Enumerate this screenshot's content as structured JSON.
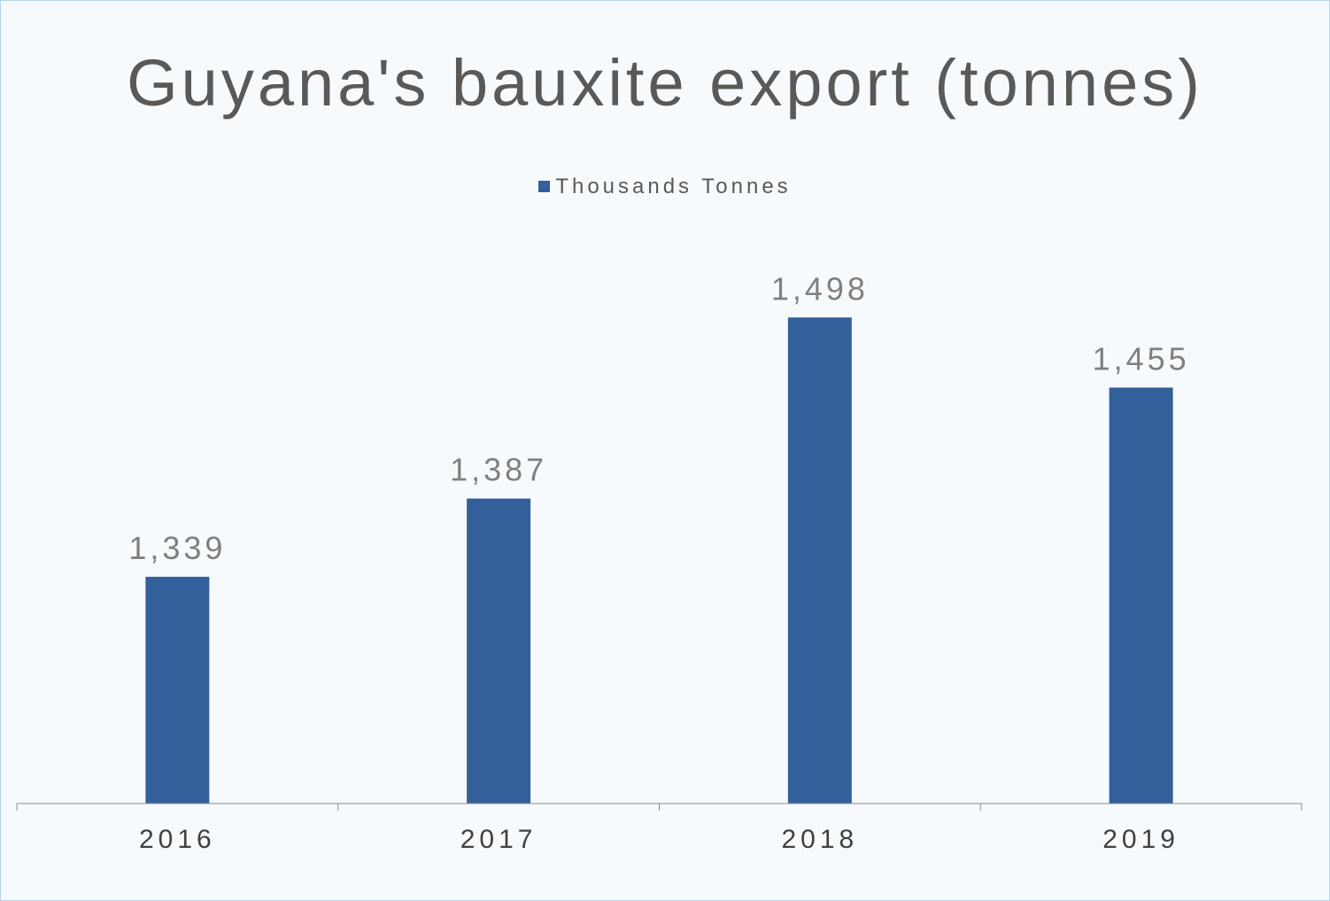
{
  "chart_data": {
    "type": "bar",
    "title": "Guyana's bauxite export (tonnes)",
    "categories": [
      "2016",
      "2017",
      "2018",
      "2019"
    ],
    "series": [
      {
        "name": "Thousands Tonnes",
        "values": [
          1339,
          1387,
          1498,
          1455
        ],
        "value_labels": [
          "1,339",
          "1,387",
          "1,498",
          "1,455"
        ],
        "color": "#33609a"
      }
    ],
    "xlabel": "",
    "ylabel": "",
    "ylim": [
      1200,
      1540
    ],
    "grid": false,
    "legend_position": "top",
    "y_axis_visible": false
  }
}
